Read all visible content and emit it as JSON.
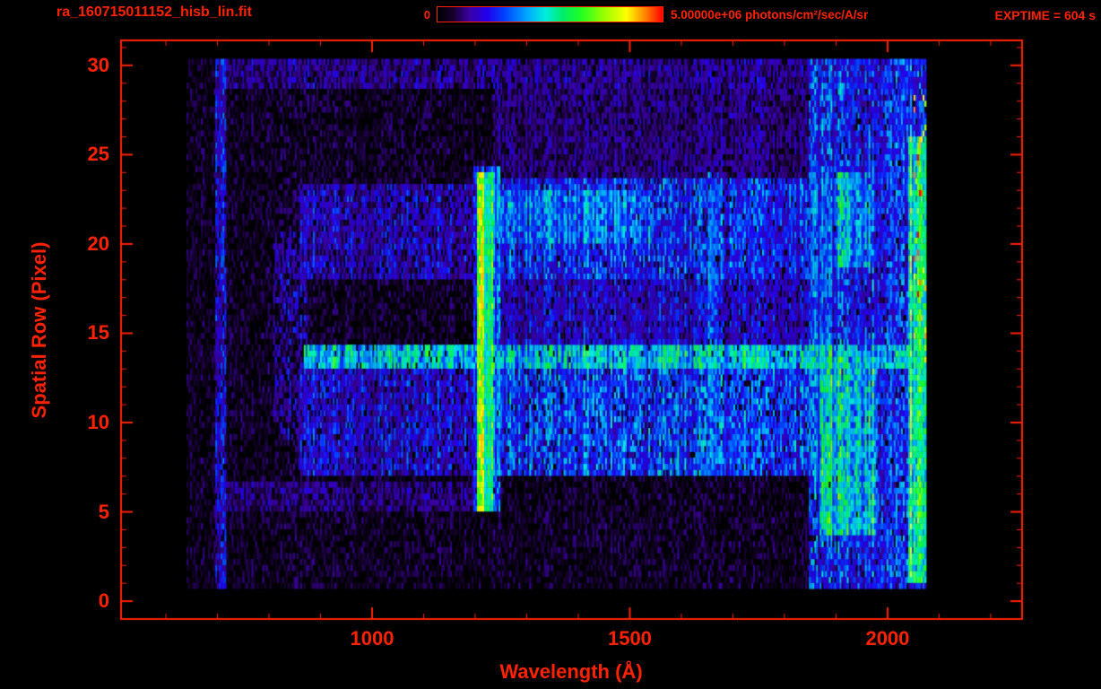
{
  "window": {
    "background": "#000000"
  },
  "colors": {
    "accent": "#ff2200"
  },
  "header": {
    "title": "ra_160715011152_hisb_lin.fit",
    "exptime": "EXPTIME = 604 s"
  },
  "colorbar": {
    "min_label": "0",
    "max_label": "5.00000e+06 photons/cm²/sec/A/sr"
  },
  "chart_data": {
    "type": "heatmap",
    "title": "ra_160715011152_hisb_lin.fit",
    "xlabel": "Wavelength (Å)",
    "ylabel": "Spatial Row (Pixel)",
    "xlim": [
      513,
      2261
    ],
    "ylim": [
      -1,
      31.4
    ],
    "x_major_ticks": [
      1000,
      1500,
      2000
    ],
    "x_minor_tick_step": 100,
    "y_major_ticks": [
      0,
      5,
      10,
      15,
      20,
      25,
      30
    ],
    "y_minor_tick_step": 1,
    "colorbar": {
      "min": 0,
      "max": 5000000,
      "units": "photons/cm²/sec/A/sr"
    },
    "exposure_time_s": 604,
    "data_extent": {
      "wavelength": [
        640,
        2075
      ],
      "row": [
        0.7,
        30.1
      ]
    },
    "colormap_stops": [
      [
        0.0,
        "#000000"
      ],
      [
        0.07,
        "#16002e"
      ],
      [
        0.14,
        "#3a00a0"
      ],
      [
        0.22,
        "#2200ee"
      ],
      [
        0.3,
        "#0044ff"
      ],
      [
        0.4,
        "#00aaff"
      ],
      [
        0.48,
        "#00eedd"
      ],
      [
        0.56,
        "#00ee66"
      ],
      [
        0.64,
        "#22ff22"
      ],
      [
        0.74,
        "#99ff00"
      ],
      [
        0.84,
        "#ffff00"
      ],
      [
        0.92,
        "#ff8800"
      ],
      [
        1.0,
        "#ff0000"
      ]
    ],
    "noise": {
      "seed": 42,
      "cell_wavelength_step": 3.5,
      "row_subdivisions": 3,
      "blank_fraction": 0.45,
      "background_base": 0.03,
      "background_amp": 0.09
    },
    "features": [
      {
        "name": "left-edge-line",
        "wl": [
          693,
          716
        ],
        "rows": [
          0.7,
          30.1
        ],
        "base": 0.1,
        "amp": 0.22,
        "density": 0.85
      },
      {
        "name": "top-rows-band",
        "wl": [
          700,
          2060
        ],
        "rows": [
          28.6,
          30.1
        ],
        "base": 0.06,
        "amp": 0.16,
        "density": 0.8
      },
      {
        "name": "bottom-strip",
        "wl": [
          700,
          1250
        ],
        "rows": [
          4.8,
          6.6
        ],
        "base": 0.06,
        "amp": 0.14,
        "density": 0.7
      },
      {
        "name": "faint-arcs",
        "wl": [
          808,
          872
        ],
        "rows": [
          9.0,
          20.5
        ],
        "base": 0.09,
        "amp": 0.15,
        "density": 0.45
      },
      {
        "name": "band-rows-8-13-left",
        "wl": [
          855,
          1204
        ],
        "rows": [
          6.8,
          13.0
        ],
        "base": 0.1,
        "amp": 0.2,
        "density": 0.85
      },
      {
        "name": "band-rows-8-13-right",
        "wl": [
          1233,
          1905
        ],
        "rows": [
          6.8,
          13.2
        ],
        "base": 0.16,
        "amp": 0.26,
        "density": 0.92
      },
      {
        "name": "bright-row-13",
        "wl": [
          865,
          2055
        ],
        "rows": [
          13.0,
          14.1
        ],
        "base": 0.3,
        "amp": 0.26,
        "density": 0.95
      },
      {
        "name": "band-rows-19-23-left",
        "wl": [
          855,
          1204
        ],
        "rows": [
          17.8,
          23.2
        ],
        "base": 0.09,
        "amp": 0.18,
        "density": 0.8
      },
      {
        "name": "band-rows-19-23-right",
        "wl": [
          1233,
          1905
        ],
        "rows": [
          18.0,
          23.4
        ],
        "base": 0.14,
        "amp": 0.24,
        "density": 0.9
      },
      {
        "name": "bright-rows-21-22",
        "wl": [
          1233,
          1545
        ],
        "rows": [
          20.0,
          23.0
        ],
        "base": 0.22,
        "amp": 0.24,
        "density": 0.9
      },
      {
        "name": "mid-rows-14-18",
        "wl": [
          1233,
          1905
        ],
        "rows": [
          14.1,
          18.0
        ],
        "base": 0.1,
        "amp": 0.18,
        "density": 0.85
      },
      {
        "name": "rows-24-28-right",
        "wl": [
          1233,
          1905
        ],
        "rows": [
          23.4,
          28.6
        ],
        "base": 0.06,
        "amp": 0.13,
        "density": 0.75
      },
      {
        "name": "vertical-streak-1660",
        "wl": [
          1650,
          1672
        ],
        "rows": [
          7.0,
          24.0
        ],
        "base": 0.18,
        "amp": 0.2,
        "density": 0.8
      },
      {
        "name": "lyman-alpha-halo",
        "wl": [
          1194,
          1246
        ],
        "rows": [
          4.9,
          24.2
        ],
        "base": 0.22,
        "amp": 0.2,
        "density": 0.9
      },
      {
        "name": "lyman-alpha-core",
        "wl": [
          1203,
          1234
        ],
        "rows": [
          4.9,
          24.0
        ],
        "base": 0.52,
        "amp": 0.26,
        "density": 1.0
      },
      {
        "name": "right-bright-region",
        "wl": [
          1845,
          2075
        ],
        "rows": [
          0.6,
          30.1
        ],
        "base": 0.13,
        "amp": 0.26,
        "density": 0.92
      },
      {
        "name": "right-green-lower",
        "wl": [
          1868,
          1978
        ],
        "rows": [
          3.5,
          13.5
        ],
        "base": 0.3,
        "amp": 0.3,
        "density": 0.95
      },
      {
        "name": "right-green-upper",
        "wl": [
          1898,
          1968
        ],
        "rows": [
          18.5,
          24.0
        ],
        "base": 0.26,
        "amp": 0.28,
        "density": 0.9
      },
      {
        "name": "right-edge-column",
        "wl": [
          2038,
          2072
        ],
        "rows": [
          1.0,
          26.0
        ],
        "base": 0.4,
        "amp": 0.32,
        "density": 1.0
      },
      {
        "name": "red-hot-specks",
        "wl": [
          2050,
          2072
        ],
        "rows": [
          13.0,
          29.0
        ],
        "base": 0.82,
        "amp": 0.18,
        "density": 0.1,
        "cap": 1.0
      }
    ]
  }
}
